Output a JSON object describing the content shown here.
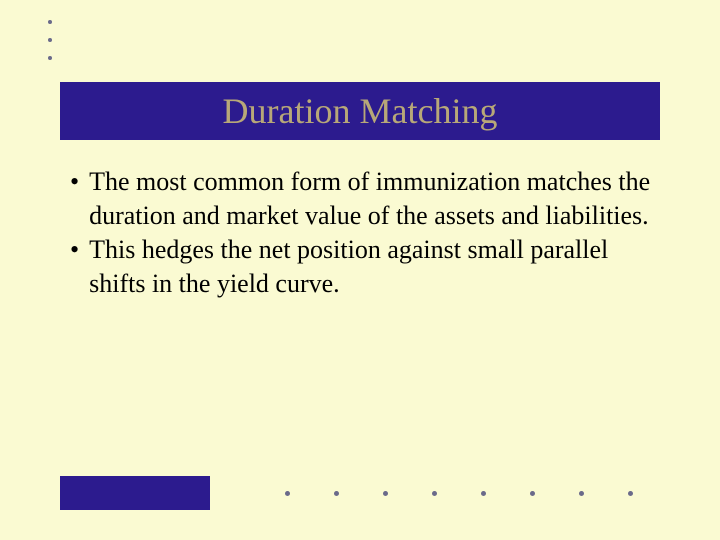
{
  "slide": {
    "title": "Duration Matching",
    "bullets": [
      "The most common form of immunization matches the duration and market value of the assets and liabilities.",
      "This hedges the net position against small parallel shifts in the yield curve."
    ]
  },
  "styling": {
    "background_color": "#fafad2",
    "title_bar_color": "#2c1b8e",
    "title_text_color": "#b8a878",
    "title_fontsize": 36,
    "body_fontsize": 26,
    "body_text_color": "#000000",
    "dot_color": "#6a6a8a",
    "footer_block_color": "#2c1b8e",
    "font_family": "Times New Roman",
    "top_dots_count": 3,
    "bottom_dots_count": 8
  }
}
